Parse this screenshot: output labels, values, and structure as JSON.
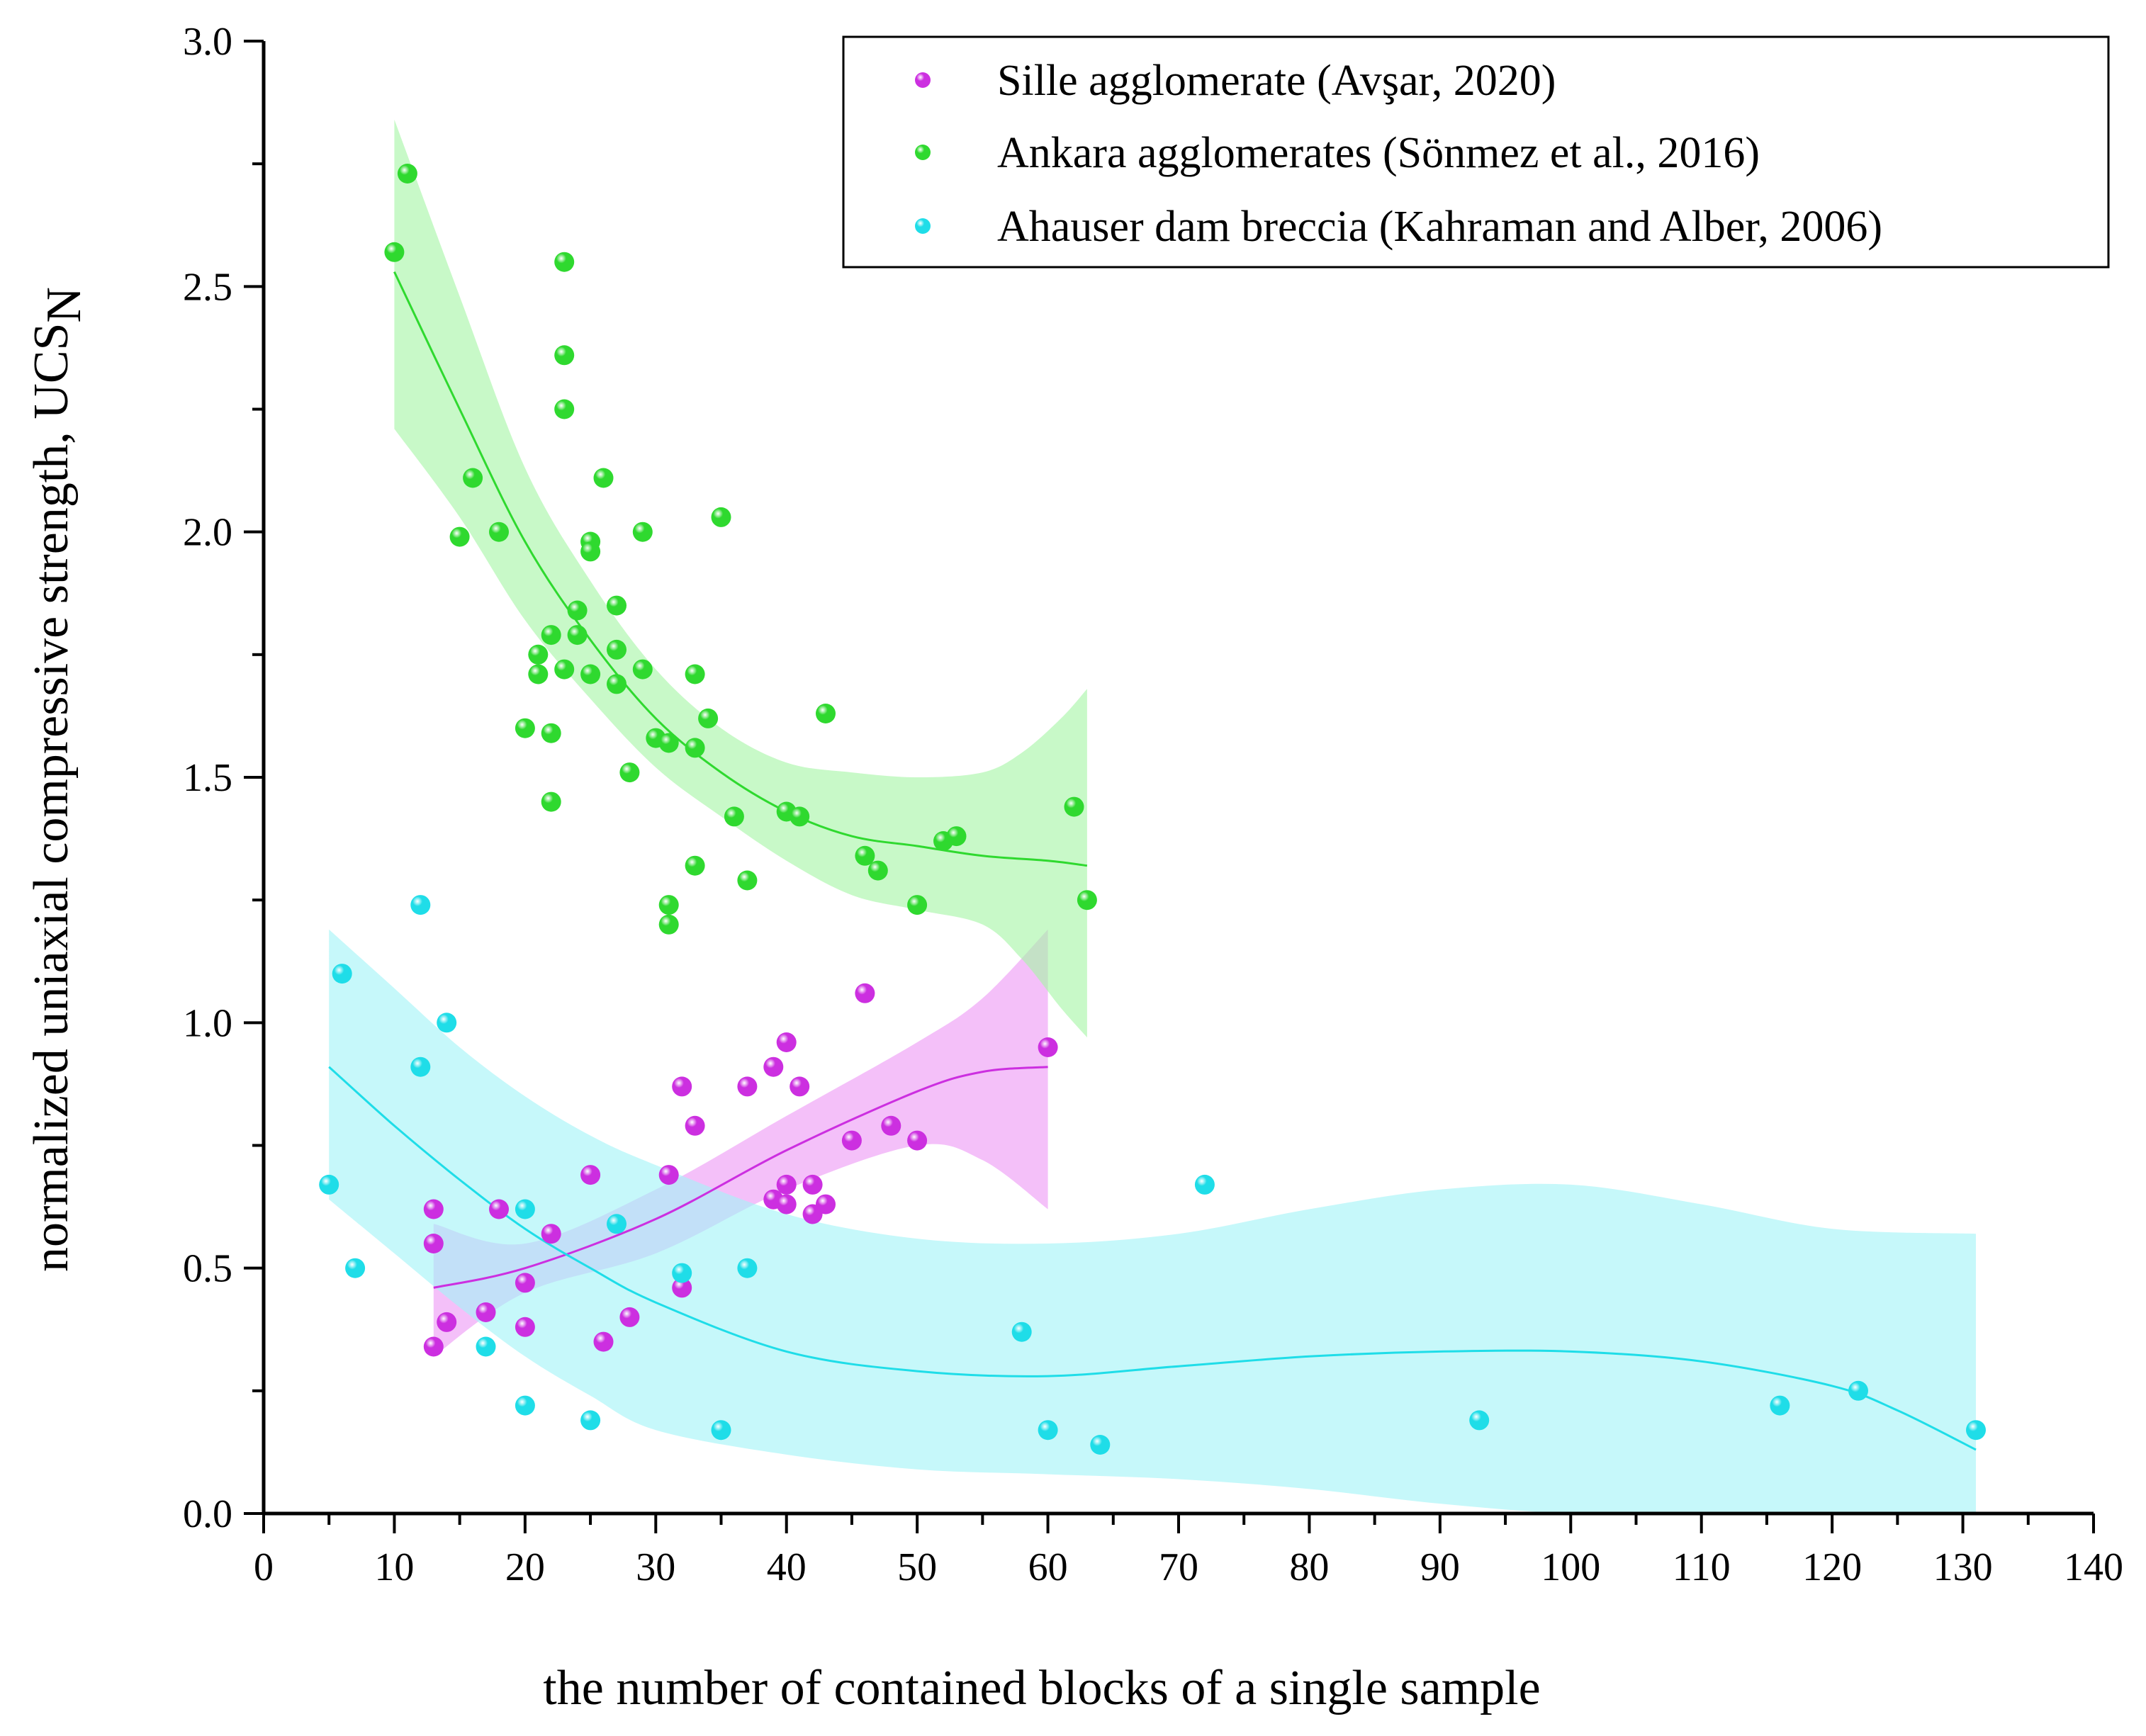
{
  "chart_data": {
    "type": "scatter",
    "title": "",
    "xlabel": "the number of contained blocks of a single sample",
    "ylabel_main": "normalized uniaxial compressive strength, UCS",
    "ylabel_sub": "N",
    "xlim": [
      0,
      140
    ],
    "ylim": [
      0,
      3.0
    ],
    "xticks": [
      "0",
      "10",
      "20",
      "30",
      "40",
      "50",
      "60",
      "70",
      "80",
      "90",
      "100",
      "110",
      "120",
      "130",
      "140"
    ],
    "yticks": [
      "0.0",
      "0.5",
      "1.0",
      "1.5",
      "2.0",
      "2.5",
      "3.0"
    ],
    "grid": false,
    "legend_position": "top-right",
    "series": [
      {
        "name": "Sille agglomerate (Avşar, 2020)",
        "color": "#cc2fe0",
        "band_color": "#ee99f6",
        "points": [
          [
            13,
            0.62
          ],
          [
            13,
            0.55
          ],
          [
            13,
            0.34
          ],
          [
            14,
            0.39
          ],
          [
            17,
            0.41
          ],
          [
            18,
            0.62
          ],
          [
            20,
            0.47
          ],
          [
            20,
            0.38
          ],
          [
            22,
            0.57
          ],
          [
            25,
            0.69
          ],
          [
            26,
            0.35
          ],
          [
            28,
            0.4
          ],
          [
            31,
            0.69
          ],
          [
            32,
            0.87
          ],
          [
            32,
            0.46
          ],
          [
            33,
            0.79
          ],
          [
            37,
            0.87
          ],
          [
            39,
            0.91
          ],
          [
            39,
            0.64
          ],
          [
            40,
            0.96
          ],
          [
            40,
            0.67
          ],
          [
            40,
            0.63
          ],
          [
            41,
            0.87
          ],
          [
            42,
            0.67
          ],
          [
            42,
            0.61
          ],
          [
            43,
            0.63
          ],
          [
            45,
            0.76
          ],
          [
            46,
            1.06
          ],
          [
            48,
            0.79
          ],
          [
            50,
            0.76
          ],
          [
            60,
            0.95
          ]
        ],
        "fit": [
          [
            13,
            0.46
          ],
          [
            20,
            0.5
          ],
          [
            30,
            0.6
          ],
          [
            40,
            0.74
          ],
          [
            50,
            0.86
          ],
          [
            55,
            0.9
          ],
          [
            60,
            0.91
          ]
        ],
        "band_upper": [
          [
            13,
            0.59
          ],
          [
            20,
            0.55
          ],
          [
            30,
            0.66
          ],
          [
            40,
            0.81
          ],
          [
            50,
            0.96
          ],
          [
            55,
            1.05
          ],
          [
            60,
            1.19
          ]
        ],
        "band_lower": [
          [
            13,
            0.32
          ],
          [
            20,
            0.45
          ],
          [
            30,
            0.53
          ],
          [
            40,
            0.66
          ],
          [
            50,
            0.75
          ],
          [
            55,
            0.72
          ],
          [
            60,
            0.62
          ]
        ]
      },
      {
        "name": "Ankara agglomerates (Sönmez et al., 2016)",
        "color": "#2fd92f",
        "band_color": "#a6f5a6",
        "points": [
          [
            10,
            2.57
          ],
          [
            11,
            2.73
          ],
          [
            15,
            1.99
          ],
          [
            16,
            2.11
          ],
          [
            18,
            2.0
          ],
          [
            20,
            1.6
          ],
          [
            21,
            1.75
          ],
          [
            21,
            1.71
          ],
          [
            22,
            1.79
          ],
          [
            22,
            1.59
          ],
          [
            22,
            1.45
          ],
          [
            23,
            2.55
          ],
          [
            23,
            2.36
          ],
          [
            23,
            2.25
          ],
          [
            23,
            1.72
          ],
          [
            24,
            1.84
          ],
          [
            24,
            1.79
          ],
          [
            25,
            1.98
          ],
          [
            25,
            1.96
          ],
          [
            25,
            1.71
          ],
          [
            26,
            2.11
          ],
          [
            27,
            1.85
          ],
          [
            27,
            1.76
          ],
          [
            27,
            1.69
          ],
          [
            28,
            1.51
          ],
          [
            29,
            2.0
          ],
          [
            29,
            1.72
          ],
          [
            30,
            1.58
          ],
          [
            31,
            1.57
          ],
          [
            31,
            1.24
          ],
          [
            31,
            1.2
          ],
          [
            33,
            1.71
          ],
          [
            33,
            1.56
          ],
          [
            33,
            1.32
          ],
          [
            34,
            1.62
          ],
          [
            35,
            2.03
          ],
          [
            36,
            1.42
          ],
          [
            37,
            1.29
          ],
          [
            40,
            1.43
          ],
          [
            41,
            1.42
          ],
          [
            43,
            1.63
          ],
          [
            46,
            1.34
          ],
          [
            47,
            1.31
          ],
          [
            50,
            1.24
          ],
          [
            52,
            1.37
          ],
          [
            53,
            1.38
          ],
          [
            62,
            1.44
          ],
          [
            63,
            1.25
          ]
        ],
        "fit": [
          [
            10,
            2.53
          ],
          [
            15,
            2.25
          ],
          [
            20,
            1.98
          ],
          [
            25,
            1.78
          ],
          [
            30,
            1.62
          ],
          [
            35,
            1.51
          ],
          [
            40,
            1.43
          ],
          [
            45,
            1.38
          ],
          [
            50,
            1.36
          ],
          [
            55,
            1.34
          ],
          [
            60,
            1.33
          ],
          [
            63,
            1.32
          ]
        ],
        "band_upper": [
          [
            10,
            2.84
          ],
          [
            15,
            2.48
          ],
          [
            20,
            2.13
          ],
          [
            25,
            1.9
          ],
          [
            30,
            1.72
          ],
          [
            35,
            1.6
          ],
          [
            40,
            1.53
          ],
          [
            45,
            1.51
          ],
          [
            50,
            1.5
          ],
          [
            55,
            1.51
          ],
          [
            58,
            1.55
          ],
          [
            61,
            1.62
          ],
          [
            63,
            1.68
          ]
        ],
        "band_lower": [
          [
            10,
            2.21
          ],
          [
            15,
            2.03
          ],
          [
            20,
            1.82
          ],
          [
            25,
            1.66
          ],
          [
            30,
            1.52
          ],
          [
            35,
            1.42
          ],
          [
            40,
            1.33
          ],
          [
            45,
            1.26
          ],
          [
            50,
            1.23
          ],
          [
            55,
            1.2
          ],
          [
            58,
            1.13
          ],
          [
            61,
            1.03
          ],
          [
            63,
            0.97
          ]
        ]
      },
      {
        "name": "Ahauser dam breccia (Kahraman and Alber, 2006)",
        "color": "#1fdde8",
        "band_color": "#a3f4f7",
        "points": [
          [
            5,
            0.67
          ],
          [
            6,
            1.1
          ],
          [
            7,
            0.5
          ],
          [
            12,
            1.24
          ],
          [
            12,
            0.91
          ],
          [
            14,
            1.0
          ],
          [
            17,
            0.34
          ],
          [
            20,
            0.62
          ],
          [
            20,
            0.22
          ],
          [
            25,
            0.19
          ],
          [
            27,
            0.59
          ],
          [
            32,
            0.49
          ],
          [
            35,
            0.17
          ],
          [
            37,
            0.5
          ],
          [
            58,
            0.37
          ],
          [
            60,
            0.17
          ],
          [
            64,
            0.14
          ],
          [
            72,
            0.67
          ],
          [
            93,
            0.19
          ],
          [
            116,
            0.22
          ],
          [
            122,
            0.25
          ],
          [
            131,
            0.17
          ]
        ],
        "fit": [
          [
            5,
            0.91
          ],
          [
            10,
            0.79
          ],
          [
            15,
            0.68
          ],
          [
            20,
            0.58
          ],
          [
            25,
            0.5
          ],
          [
            30,
            0.43
          ],
          [
            40,
            0.33
          ],
          [
            50,
            0.29
          ],
          [
            60,
            0.28
          ],
          [
            70,
            0.3
          ],
          [
            80,
            0.32
          ],
          [
            90,
            0.33
          ],
          [
            100,
            0.33
          ],
          [
            110,
            0.31
          ],
          [
            120,
            0.26
          ],
          [
            125,
            0.21
          ],
          [
            131,
            0.13
          ]
        ],
        "band_upper": [
          [
            5,
            1.19
          ],
          [
            10,
            1.07
          ],
          [
            15,
            0.95
          ],
          [
            20,
            0.85
          ],
          [
            25,
            0.77
          ],
          [
            30,
            0.71
          ],
          [
            40,
            0.61
          ],
          [
            50,
            0.56
          ],
          [
            60,
            0.55
          ],
          [
            70,
            0.57
          ],
          [
            80,
            0.62
          ],
          [
            90,
            0.66
          ],
          [
            100,
            0.67
          ],
          [
            110,
            0.63
          ],
          [
            120,
            0.58
          ],
          [
            131,
            0.57
          ]
        ],
        "band_lower": [
          [
            5,
            0.64
          ],
          [
            10,
            0.53
          ],
          [
            15,
            0.42
          ],
          [
            20,
            0.32
          ],
          [
            25,
            0.24
          ],
          [
            30,
            0.17
          ],
          [
            40,
            0.12
          ],
          [
            50,
            0.09
          ],
          [
            60,
            0.08
          ],
          [
            70,
            0.07
          ],
          [
            80,
            0.05
          ],
          [
            90,
            0.02
          ],
          [
            100,
            0.0
          ],
          [
            110,
            0.0
          ],
          [
            120,
            0.0
          ],
          [
            131,
            0.0
          ]
        ]
      }
    ]
  }
}
